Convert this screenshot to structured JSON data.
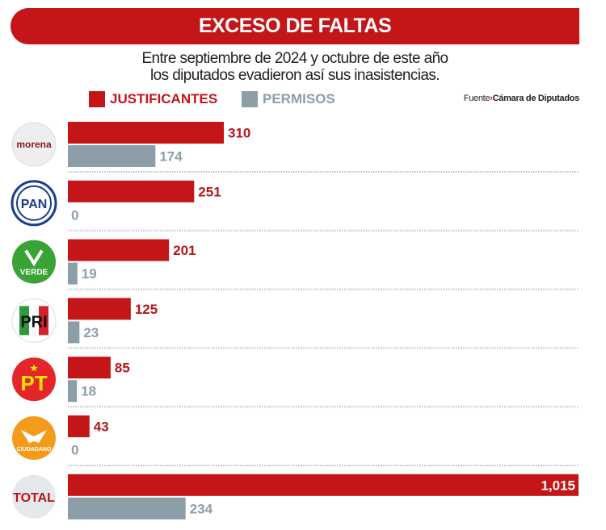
{
  "title": "EXCESO DE FALTAS",
  "subtitle_line1": "Entre septiembre de 2024 y octubre de este año",
  "subtitle_line2": "los diputados evadieron así sus inasistencias.",
  "source_label": "Fuente",
  "source_value": "Cámara de Diputados",
  "colors": {
    "justificantes": "#c41518",
    "permisos": "#8c9ea8",
    "banner": "#c41518"
  },
  "chart_data": {
    "type": "bar",
    "orientation": "horizontal",
    "categories": [
      "morena",
      "PAN",
      "VERDE",
      "PRI",
      "PT",
      "MOVIMIENTO CIUDADANO",
      "TOTAL"
    ],
    "series": [
      {
        "name": "JUSTIFICANTES",
        "values": [
          310,
          251,
          201,
          125,
          85,
          43,
          1015
        ],
        "labels": [
          "310",
          "251",
          "201",
          "125",
          "85",
          "43",
          "1,015"
        ]
      },
      {
        "name": "PERMISOS",
        "values": [
          174,
          0,
          19,
          23,
          18,
          0,
          234
        ],
        "labels": [
          "174",
          "0",
          "19",
          "23",
          "18",
          "0",
          "234"
        ]
      }
    ],
    "xlim": [
      0,
      1015
    ],
    "legend": "top-left",
    "grid": false
  }
}
